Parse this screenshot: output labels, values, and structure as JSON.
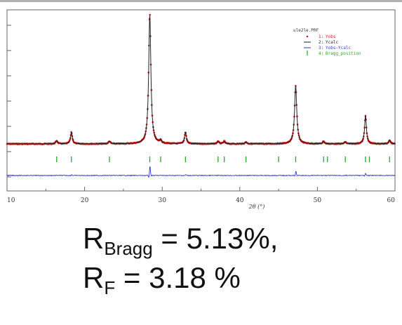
{
  "chart_data": {
    "type": "line",
    "xlabel": "2θ (°)",
    "xlim": [
      10,
      60
    ],
    "x_ticks": [
      10,
      20,
      30,
      40,
      50,
      60
    ],
    "legend": {
      "title": "ule2le.PRF",
      "placement": "top-right",
      "entries": [
        {
          "index": "1",
          "name": "Yobs",
          "symbol": "dot",
          "color": "#d81414"
        },
        {
          "index": "2",
          "name": "Ycalc",
          "symbol": "line",
          "color": "#222222"
        },
        {
          "index": "3",
          "name": "Yobs-Ycalc",
          "symbol": "line",
          "color": "#2a3ad6"
        },
        {
          "index": "4",
          "name": "Bragg_position",
          "symbol": "tick",
          "color": "#22aa22"
        }
      ]
    },
    "peaks": [
      {
        "x": 16.4,
        "intensity": 0.025
      },
      {
        "x": 18.3,
        "intensity": 0.09
      },
      {
        "x": 23.2,
        "intensity": 0.02
      },
      {
        "x": 28.4,
        "intensity": 1.0
      },
      {
        "x": 29.8,
        "intensity": 0.02
      },
      {
        "x": 33.0,
        "intensity": 0.09
      },
      {
        "x": 37.2,
        "intensity": 0.02
      },
      {
        "x": 38.0,
        "intensity": 0.02
      },
      {
        "x": 40.8,
        "intensity": 0.015
      },
      {
        "x": 47.2,
        "intensity": 0.45
      },
      {
        "x": 50.8,
        "intensity": 0.02
      },
      {
        "x": 53.6,
        "intensity": 0.015
      },
      {
        "x": 56.2,
        "intensity": 0.22
      },
      {
        "x": 59.3,
        "intensity": 0.03
      }
    ],
    "bragg_positions": [
      16.4,
      18.3,
      23.2,
      28.4,
      29.8,
      33.0,
      37.2,
      38.0,
      40.8,
      45.0,
      47.2,
      50.8,
      51.3,
      53.6,
      56.2,
      56.7,
      59.3
    ],
    "series_colors": {
      "observed": "#d81414",
      "calculated": "#222222",
      "difference": "#2a3ad6",
      "bragg": "#22aa22"
    }
  },
  "caption": {
    "line1": {
      "base": "R",
      "sub": "Bragg",
      "rest": " = 5.13%,"
    },
    "line2": {
      "base": "R",
      "sub": "F",
      "rest": " = 3.18 %"
    }
  }
}
